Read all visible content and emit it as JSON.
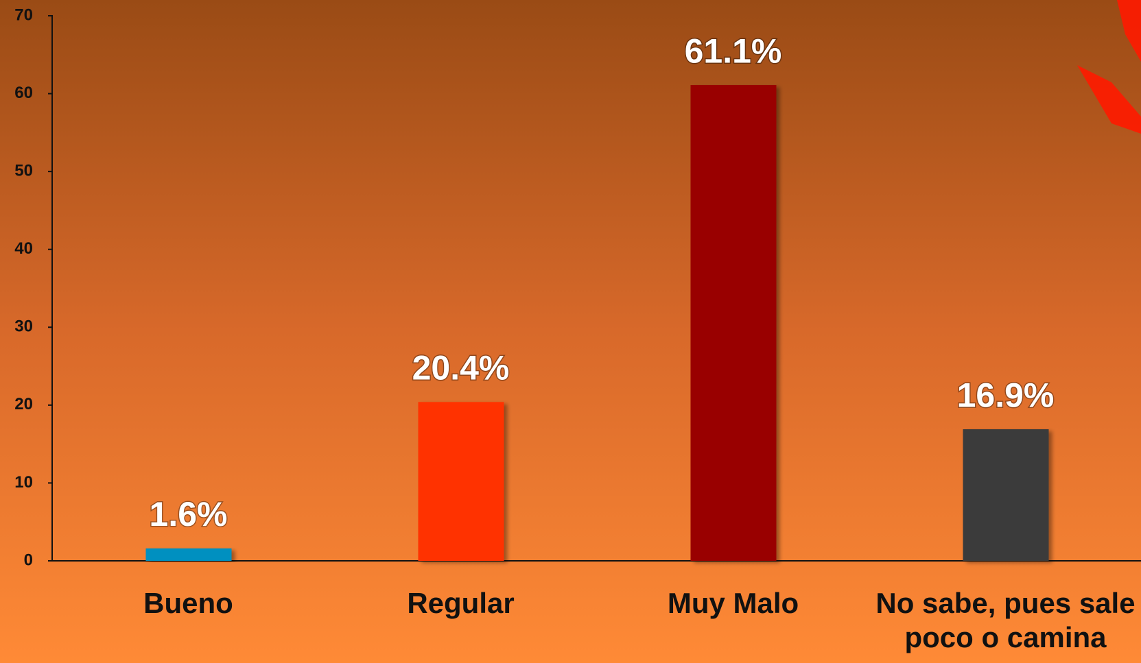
{
  "chart_data": {
    "type": "bar",
    "categories": [
      "Bueno",
      "Regular",
      "Muy Malo",
      "No sabe, pues sale poco o camina"
    ],
    "values": [
      1.6,
      20.4,
      61.1,
      16.9
    ],
    "value_labels": [
      "1.6%",
      "20.4%",
      "61.1%",
      "16.9%"
    ],
    "colors": [
      "#0090c0",
      "#ff3300",
      "#990000",
      "#3a3a3a"
    ],
    "ylim": [
      0,
      70
    ],
    "yticks": [
      0,
      10,
      20,
      30,
      40,
      50,
      60,
      70
    ],
    "grid": false
  }
}
